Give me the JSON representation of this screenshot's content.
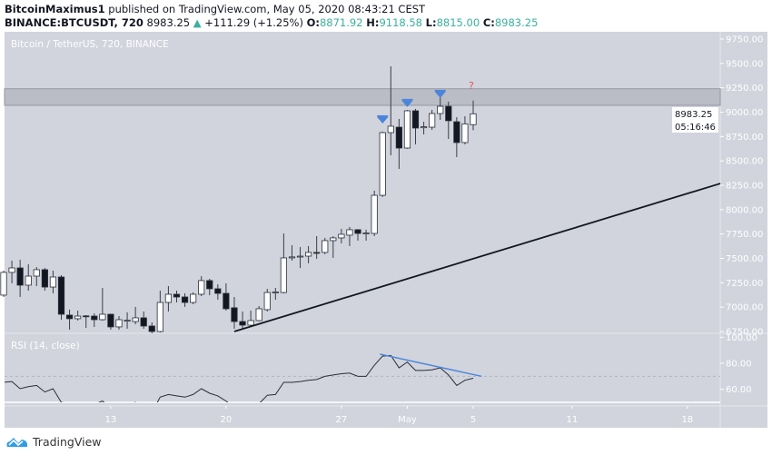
{
  "header": {
    "author": "BitcoinMaximus1",
    "published": " published on TradingView.com, May 05, 2020 08:43:21 CEST",
    "symbol": "BINANCE:BTCUSDT, 720",
    "last": "8983.25",
    "change": "+111.29 (+1.25%)",
    "o_label": "O:",
    "o": "8871.92",
    "h_label": "H:",
    "h": "9118.58",
    "l_label": "L:",
    "l": "8815.00",
    "c_label": "C:",
    "c": "8983.25"
  },
  "pane_title": "Bitcoin / TetherUS, 720, BINANCE",
  "rsi_title": "RSI (14, close)",
  "price_label": "8983.25",
  "countdown": "05:16:46",
  "logo_text": "TradingView",
  "colors": {
    "pane_bg": "#d1d4dc",
    "bull": "#ffffff",
    "bear": "#131722",
    "wick": "#3a3e4a",
    "accent": "#3ab09e",
    "arrow": "#4a84dc",
    "rsi_trend": "#4a84dc",
    "zone": "#b2b5be",
    "question": "#e05555"
  },
  "chart_data": {
    "type": "candlestick",
    "title": "Bitcoin / TetherUS, 720, BINANCE",
    "interval": "720",
    "price_axis": {
      "ylim": [
        6750,
        9750
      ],
      "ticks": [
        "6750.00",
        "7000.00",
        "7250.00",
        "7500.00",
        "7750.00",
        "8000.00",
        "8250.00",
        "8500.00",
        "8750.00",
        "9000.00",
        "9250.00",
        "9500.00",
        "9750.00"
      ]
    },
    "time_axis": {
      "ticks": [
        {
          "label": "13",
          "t": "2020-04-13T00:00"
        },
        {
          "label": "20",
          "t": "2020-04-20T00:00"
        },
        {
          "label": "27",
          "t": "2020-04-27T00:00"
        },
        {
          "label": "May",
          "t": "2020-05-01T00:00"
        },
        {
          "label": "5",
          "t": "2020-05-05T00:00"
        },
        {
          "label": "11",
          "t": "2020-05-11T00:00"
        },
        {
          "label": "18",
          "t": "2020-05-18T00:00"
        }
      ]
    },
    "candles_fields": [
      "t",
      "open",
      "high",
      "low",
      "close"
    ],
    "candles": [
      [
        "2020-04-06T12:00",
        7123,
        7374,
        7104,
        7356
      ],
      [
        "2020-04-07T00:00",
        7356,
        7477,
        7244,
        7402
      ],
      [
        "2020-04-07T12:00",
        7402,
        7486,
        7104,
        7225
      ],
      [
        "2020-04-08T00:00",
        7225,
        7439,
        7169,
        7318
      ],
      [
        "2020-04-08T12:00",
        7318,
        7411,
        7216,
        7384
      ],
      [
        "2020-04-09T00:00",
        7384,
        7402,
        7169,
        7206
      ],
      [
        "2020-04-09T12:00",
        7206,
        7374,
        7141,
        7309
      ],
      [
        "2020-04-10T00:00",
        7309,
        7328,
        6871,
        6927
      ],
      [
        "2020-04-10T12:00",
        6918,
        6974,
        6769,
        6881
      ],
      [
        "2020-04-11T00:00",
        6881,
        6964,
        6862,
        6908
      ],
      [
        "2020-04-11T12:00",
        6910,
        6918,
        6787,
        6905
      ],
      [
        "2020-04-12T00:00",
        6908,
        6936,
        6796,
        6871
      ],
      [
        "2020-04-12T12:00",
        6871,
        7197,
        6862,
        6927
      ],
      [
        "2020-04-13T00:00",
        6927,
        6930,
        6769,
        6797
      ],
      [
        "2020-04-13T12:00",
        6797,
        6908,
        6769,
        6871
      ],
      [
        "2020-04-14T00:00",
        6860,
        6946,
        6778,
        6865
      ],
      [
        "2020-04-14T12:00",
        6852,
        7002,
        6824,
        6890
      ],
      [
        "2020-04-15T00:00",
        6890,
        6955,
        6778,
        6806
      ],
      [
        "2020-04-15T12:00",
        6806,
        6843,
        6731,
        6750
      ],
      [
        "2020-04-16T00:00",
        6750,
        7169,
        6740,
        7048
      ],
      [
        "2020-04-16T12:00",
        7048,
        7216,
        6955,
        7132
      ],
      [
        "2020-04-17T00:00",
        7132,
        7169,
        7048,
        7104
      ],
      [
        "2020-04-17T12:00",
        7104,
        7141,
        7002,
        7048
      ],
      [
        "2020-04-18T00:00",
        7048,
        7151,
        7030,
        7132
      ],
      [
        "2020-04-18T12:00",
        7132,
        7318,
        7113,
        7272
      ],
      [
        "2020-04-19T00:00",
        7272,
        7290,
        7122,
        7188
      ],
      [
        "2020-04-19T12:00",
        7188,
        7234,
        7076,
        7141
      ],
      [
        "2020-04-20T00:00",
        7141,
        7244,
        6964,
        6983
      ],
      [
        "2020-04-20T12:00",
        6993,
        7104,
        6778,
        6852
      ],
      [
        "2020-04-21T00:00",
        6852,
        6955,
        6769,
        6815
      ],
      [
        "2020-04-21T12:00",
        6815,
        6964,
        6810,
        6862
      ],
      [
        "2020-04-22T00:00",
        6862,
        7011,
        6855,
        6983
      ],
      [
        "2020-04-22T12:00",
        6974,
        7188,
        6955,
        7150
      ],
      [
        "2020-04-23T00:00",
        7150,
        7197,
        7076,
        7155
      ],
      [
        "2020-04-23T12:00",
        7150,
        7756,
        7141,
        7505
      ],
      [
        "2020-04-24T00:00",
        7505,
        7635,
        7477,
        7515
      ],
      [
        "2020-04-24T12:00",
        7515,
        7616,
        7402,
        7523
      ],
      [
        "2020-04-25T00:00",
        7523,
        7626,
        7449,
        7561
      ],
      [
        "2020-04-25T12:00",
        7561,
        7728,
        7495,
        7552
      ],
      [
        "2020-04-26T00:00",
        7561,
        7710,
        7542,
        7682
      ],
      [
        "2020-04-26T12:00",
        7682,
        7728,
        7505,
        7710
      ],
      [
        "2020-04-27T00:00",
        7710,
        7803,
        7654,
        7747
      ],
      [
        "2020-04-27T12:00",
        7738,
        7822,
        7626,
        7794
      ],
      [
        "2020-04-28T00:00",
        7794,
        7800,
        7682,
        7756
      ],
      [
        "2020-04-28T12:00",
        7756,
        7794,
        7682,
        7760
      ],
      [
        "2020-04-29T00:00",
        7756,
        8194,
        7728,
        8147
      ],
      [
        "2020-04-29T12:00",
        8147,
        8800,
        8130,
        8790
      ],
      [
        "2020-04-30T00:00",
        8790,
        9470,
        8557,
        8856
      ],
      [
        "2020-04-30T12:00",
        8846,
        8930,
        8418,
        8632
      ],
      [
        "2020-05-01T00:00",
        8632,
        9023,
        8625,
        9014
      ],
      [
        "2020-05-01T12:00",
        9014,
        9033,
        8669,
        8837
      ],
      [
        "2020-05-02T00:00",
        8840,
        8902,
        8772,
        8850
      ],
      [
        "2020-05-02T12:00",
        8846,
        9023,
        8818,
        8986
      ],
      [
        "2020-05-03T00:00",
        8986,
        9154,
        8921,
        9060
      ],
      [
        "2020-05-03T12:00",
        9060,
        9107,
        8725,
        8912
      ],
      [
        "2020-05-04T00:00",
        8902,
        8949,
        8539,
        8688
      ],
      [
        "2020-05-04T12:00",
        8688,
        8958,
        8669,
        8880
      ],
      [
        "2020-05-05T00:00",
        8871.92,
        9118.58,
        8815.0,
        8983.25
      ]
    ],
    "resistance_zone": {
      "from": 9070,
      "to": 9240
    },
    "trendline": {
      "start": {
        "t": "2020-04-20T12:00",
        "price": 6750
      },
      "end": {
        "t": "2020-05-20T00:00",
        "price": 8268
      }
    },
    "markers": [
      {
        "type": "arrow-down",
        "t": "2020-04-29T12:00",
        "price": 8884
      },
      {
        "type": "arrow-down",
        "t": "2020-05-01T00:00",
        "price": 9052
      },
      {
        "type": "arrow-down",
        "t": "2020-05-03T00:00",
        "price": 9145
      },
      {
        "type": "text",
        "text": "?",
        "t": "2020-05-05T00:00",
        "price": 9266
      }
    ],
    "rsi": {
      "name": "RSI (14, close)",
      "ylim": [
        46,
        100
      ],
      "ticks": [
        "100.00",
        "80.00",
        "60.00"
      ],
      "level": 70,
      "values": [
        65.4,
        66,
        60.5,
        62,
        63,
        58,
        60.5,
        50,
        49,
        49.5,
        49.5,
        48.5,
        51,
        46,
        48,
        48,
        50,
        46,
        42,
        54,
        56,
        55,
        54,
        56,
        60.5,
        57,
        55,
        51,
        46,
        42,
        46,
        49,
        55.5,
        56,
        65.4,
        65.4,
        66,
        67,
        67.5,
        70,
        71,
        72,
        72.5,
        70,
        70,
        78.5,
        85.5,
        86,
        76.5,
        81,
        74.5,
        74.5,
        75,
        76.5,
        71,
        63,
        67,
        68.5
      ],
      "trendline": {
        "start": {
          "t": "2020-04-29T12:00",
          "value": 87
        },
        "end": {
          "t": "2020-05-05T12:00",
          "value": 70
        }
      }
    }
  }
}
